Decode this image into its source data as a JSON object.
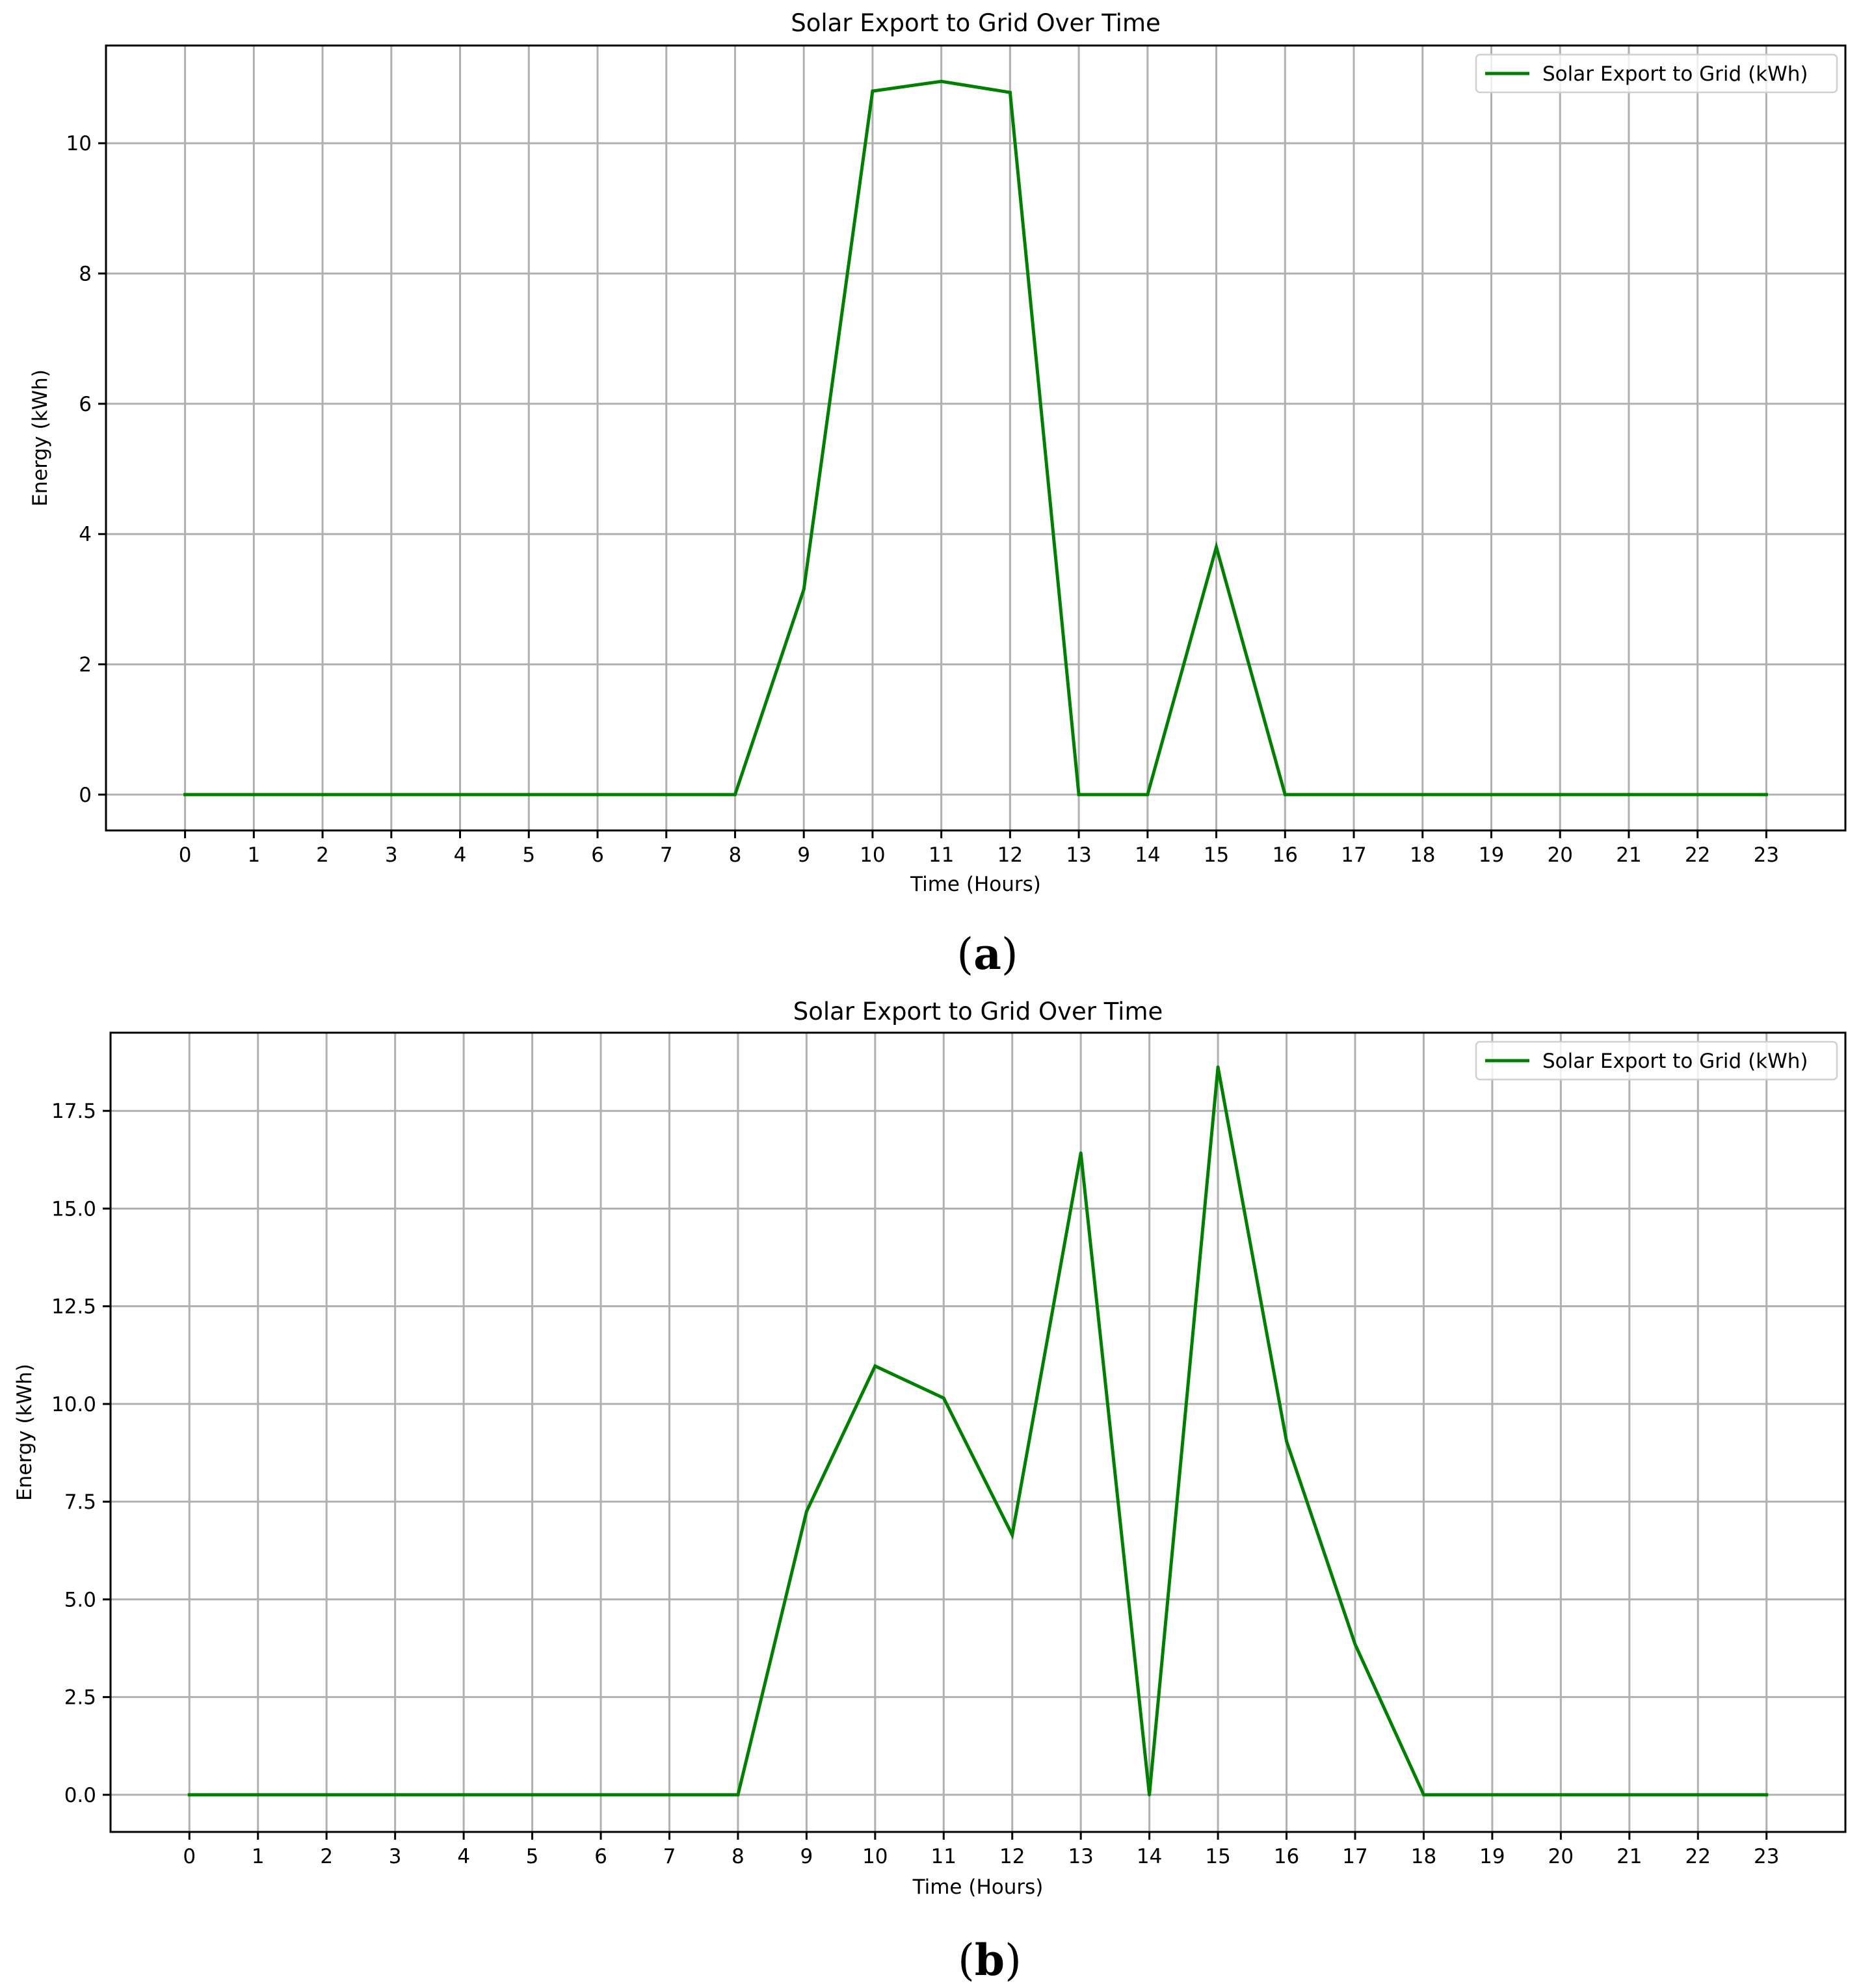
{
  "colors": {
    "series": "#008000",
    "grid": "#b0b0b0",
    "axes": "#000000"
  },
  "chart_data": [
    {
      "type": "line",
      "title": "Solar Export to Grid Over Time",
      "xlabel": "Time (Hours)",
      "ylabel": "Energy (kWh)",
      "caption": "(a)",
      "caption_letter": "a",
      "x": [
        0,
        1,
        2,
        3,
        4,
        5,
        6,
        7,
        8,
        9,
        10,
        11,
        12,
        13,
        14,
        15,
        16,
        17,
        18,
        19,
        20,
        21,
        22,
        23
      ],
      "xlim": [
        -1.15,
        24.15
      ],
      "ylim": [
        -0.55,
        11.5
      ],
      "yticks": [
        0,
        2,
        4,
        6,
        8,
        10
      ],
      "ytick_labels": [
        "0",
        "2",
        "4",
        "6",
        "8",
        "10"
      ],
      "grid": true,
      "legend_position": "top-right",
      "series": [
        {
          "name": "Solar Export to Grid (kWh)",
          "color": "#008000",
          "values": [
            0,
            0,
            0,
            0,
            0,
            0,
            0,
            0,
            0,
            3.15,
            10.8,
            10.95,
            10.78,
            0,
            0,
            3.8,
            0,
            0,
            0,
            0,
            0,
            0,
            0,
            0
          ]
        }
      ]
    },
    {
      "type": "line",
      "title": "Solar Export to Grid Over Time",
      "xlabel": "Time (Hours)",
      "ylabel": "Energy (kWh)",
      "caption": "(b)",
      "caption_letter": "b",
      "x": [
        0,
        1,
        2,
        3,
        4,
        5,
        6,
        7,
        8,
        9,
        10,
        11,
        12,
        13,
        14,
        15,
        16,
        17,
        18,
        19,
        20,
        21,
        22,
        23
      ],
      "xlim": [
        -1.15,
        24.15
      ],
      "ylim": [
        -0.95,
        19.5
      ],
      "yticks": [
        0,
        2.5,
        5,
        7.5,
        10,
        12.5,
        15,
        17.5
      ],
      "ytick_labels": [
        "0.0",
        "2.5",
        "5.0",
        "7.5",
        "10.0",
        "12.5",
        "15.0",
        "17.5"
      ],
      "grid": true,
      "legend_position": "top-right",
      "series": [
        {
          "name": "Solar Export to Grid (kWh)",
          "color": "#008000",
          "values": [
            0,
            0,
            0,
            0,
            0,
            0,
            0,
            0,
            0,
            7.25,
            10.97,
            10.15,
            6.65,
            16.42,
            0,
            18.62,
            9.05,
            3.85,
            0,
            0,
            0,
            0,
            0,
            0
          ]
        }
      ]
    }
  ]
}
